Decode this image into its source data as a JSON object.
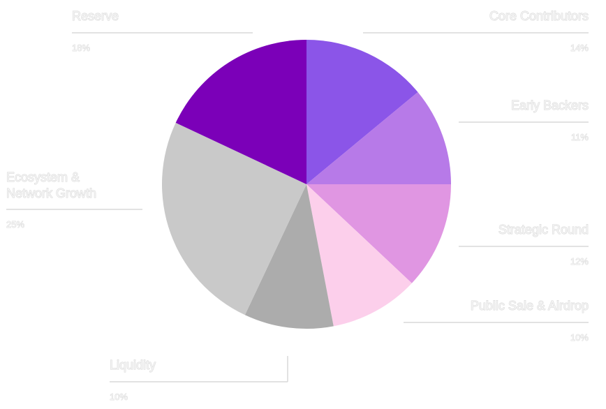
{
  "chart_data": {
    "type": "pie",
    "title": "",
    "slices": [
      {
        "label": "Core Contributors",
        "lines": [
          "Core Contributors"
        ],
        "value": 14,
        "display": "14%",
        "color": "#8b55e8"
      },
      {
        "label": "Early Backers",
        "lines": [
          "Early Backers"
        ],
        "value": 11,
        "display": "11%",
        "color": "#b77ae8"
      },
      {
        "label": "Strategic Round",
        "lines": [
          "Strategic Round"
        ],
        "value": 12,
        "display": "12%",
        "color": "#e096e2"
      },
      {
        "label": "Public Sale & Airdrop",
        "lines": [
          "Public Sale & Airdrop"
        ],
        "value": 10,
        "display": "10%",
        "color": "#fccfeb"
      },
      {
        "label": "Liquidity",
        "lines": [
          "Liquidity"
        ],
        "value": 10,
        "display": "10%",
        "color": "#acacac"
      },
      {
        "label": "Ecosystem & Network Growth",
        "lines": [
          "Ecosystem &",
          "Network Growth"
        ],
        "value": 25,
        "display": "25%",
        "color": "#c9c9c9"
      },
      {
        "label": "Reserve",
        "lines": [
          "Reserve"
        ],
        "value": 18,
        "display": "18%",
        "color": "#7b00b8"
      }
    ]
  }
}
